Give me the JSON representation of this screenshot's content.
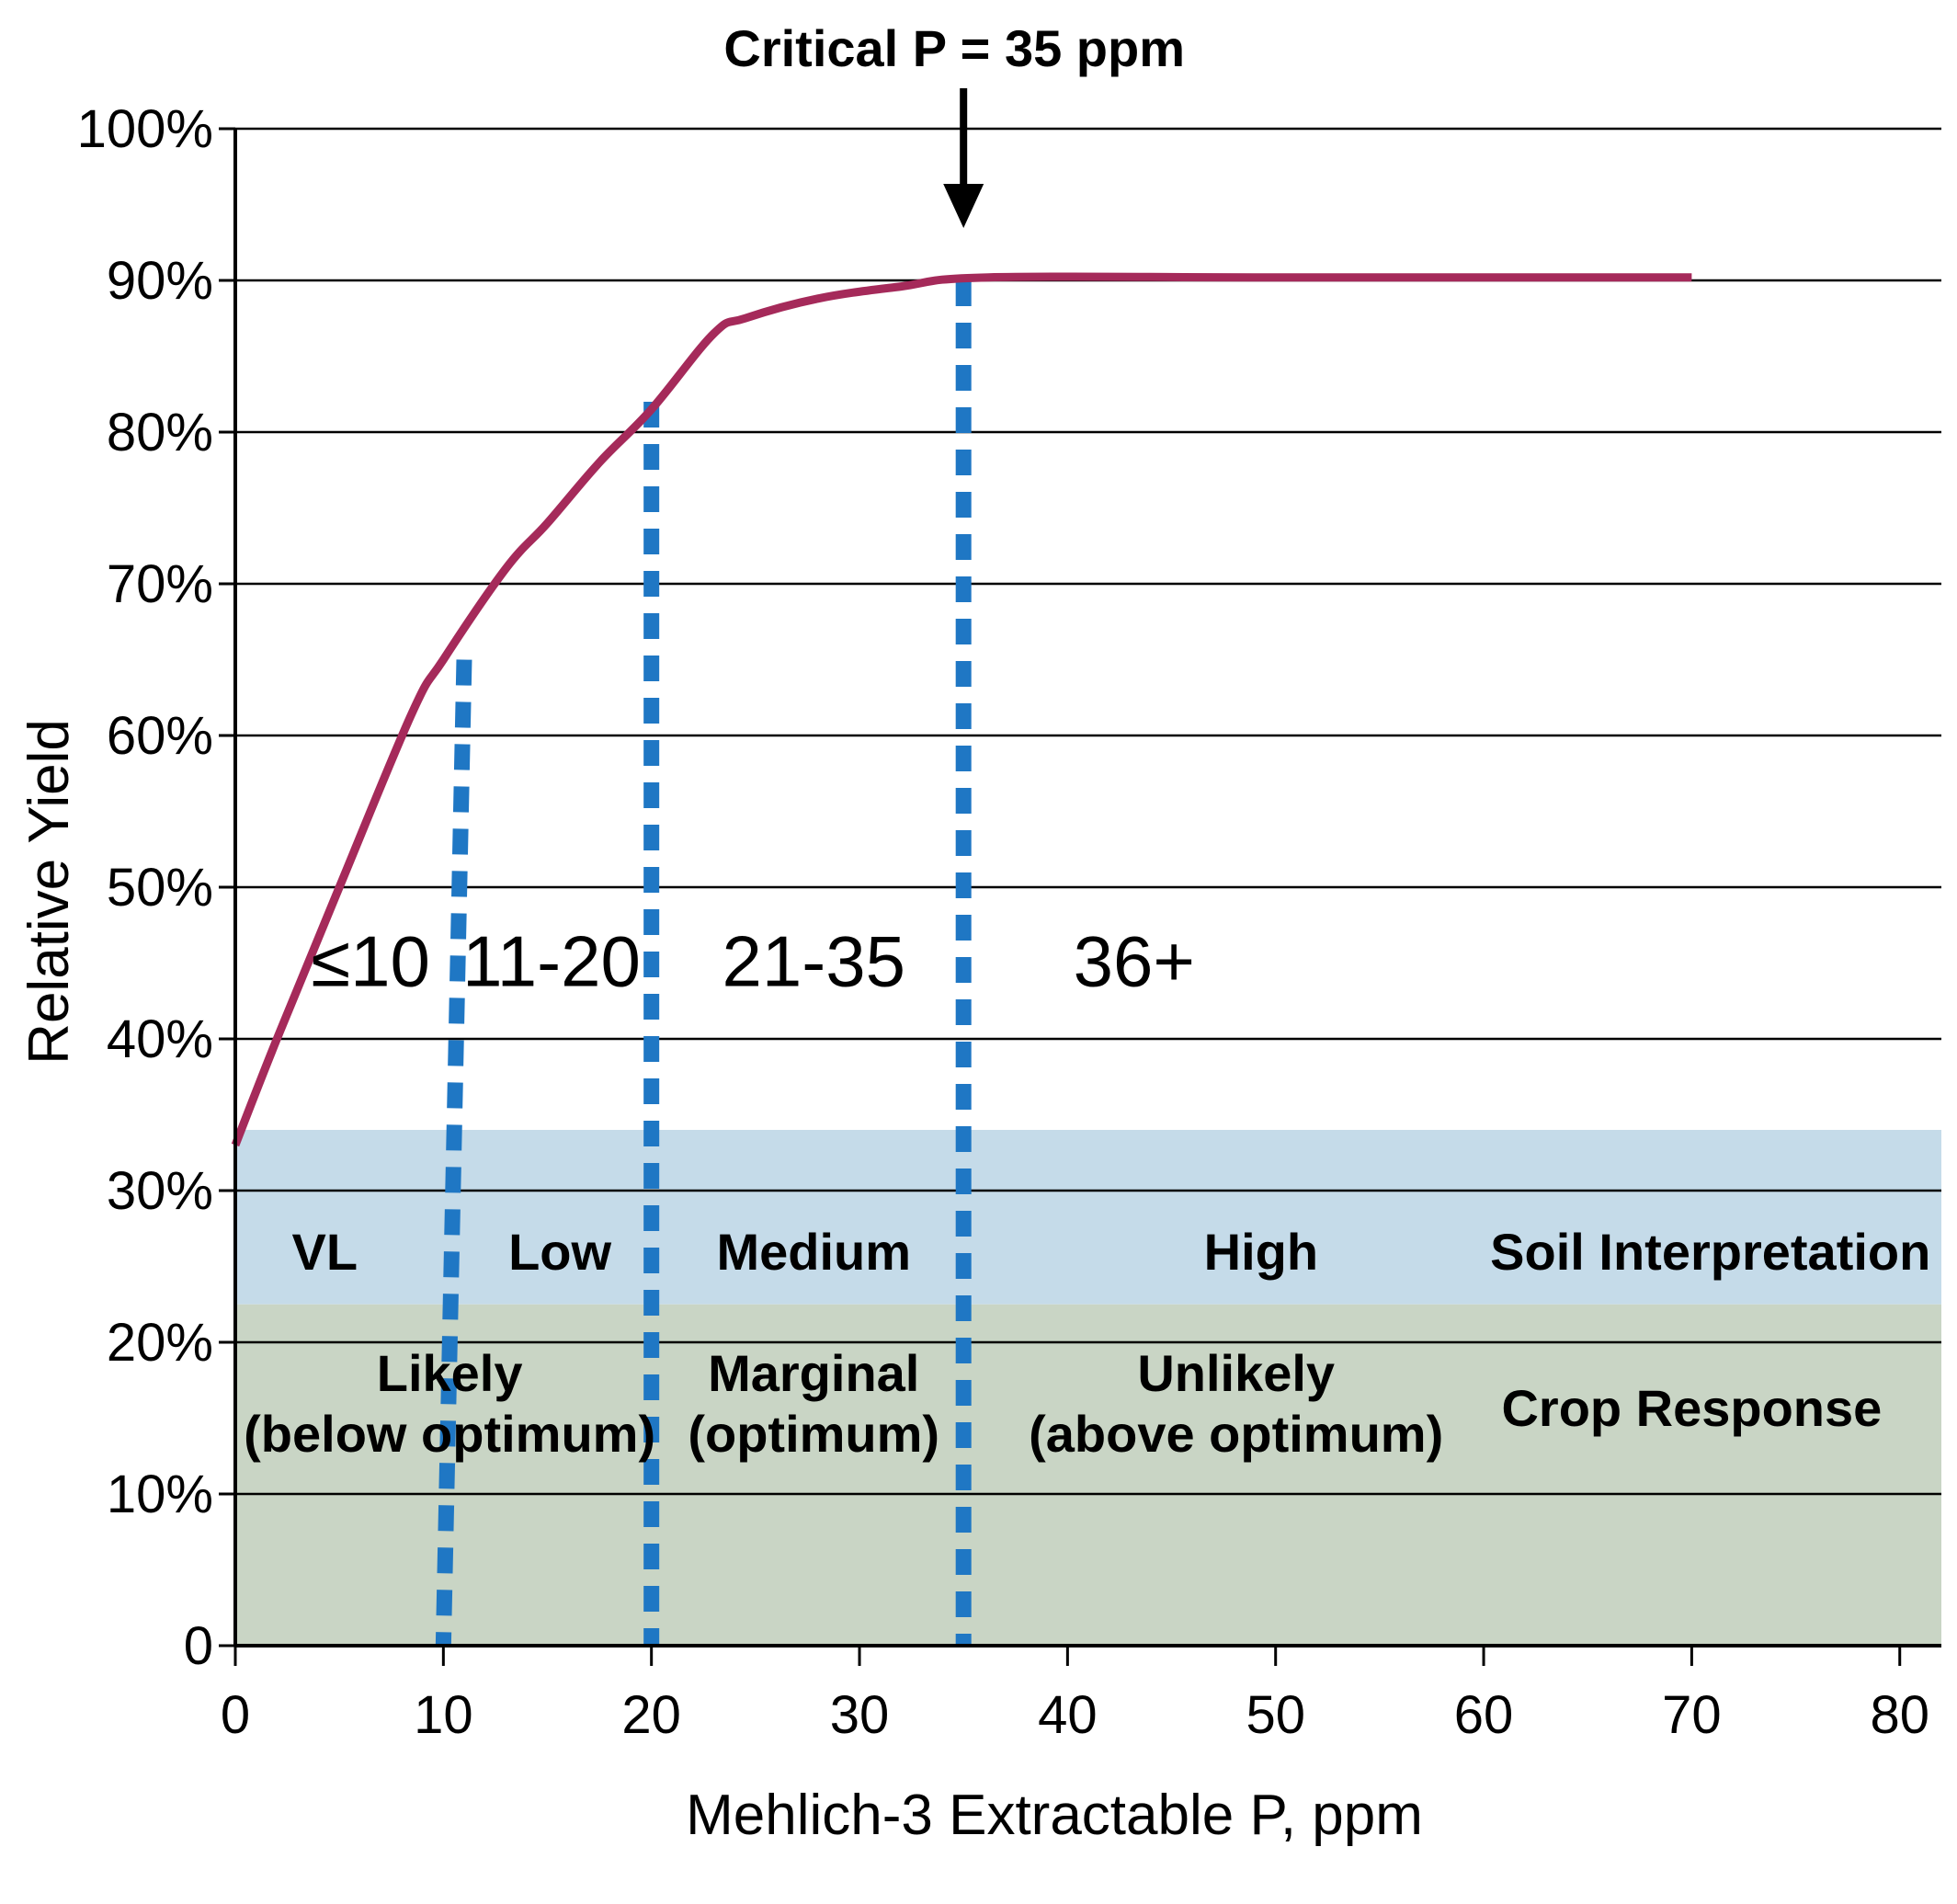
{
  "chart_data": {
    "type": "line",
    "title": "",
    "xlabel": "Mehlich-3 Extractable P, ppm",
    "ylabel": "Relative Yield",
    "xlim": [
      0,
      82
    ],
    "ylim": [
      0,
      100
    ],
    "x_ticks": [
      0,
      10,
      20,
      30,
      40,
      50,
      60,
      70,
      80
    ],
    "x_tick_labels": [
      "0",
      "10",
      "20",
      "30",
      "40",
      "50",
      "60",
      "70",
      "80"
    ],
    "y_ticks": [
      0,
      10,
      20,
      30,
      40,
      50,
      60,
      70,
      80,
      90,
      100
    ],
    "y_tick_labels": [
      "0",
      "10%",
      "20%",
      "30%",
      "40%",
      "50%",
      "60%",
      "70%",
      "80%",
      "90%",
      "100%"
    ],
    "grid": "horizontal",
    "series": [
      {
        "color": "#a52a5a",
        "x": [
          0,
          2,
          5,
          8.5,
          10,
          13,
          15,
          17.5,
          20,
          23,
          24.5,
          28,
          32,
          36.2,
          50,
          70
        ],
        "y": [
          33,
          40,
          50,
          61.5,
          65,
          71,
          74,
          78,
          81.5,
          86.5,
          87.5,
          88.8,
          89.6,
          90.2,
          90.2,
          90.2
        ]
      }
    ],
    "thresholds": [
      {
        "x_top": 11,
        "x_bottom": 10,
        "y_top": 65,
        "color": "#1f77c4"
      },
      {
        "x_top": 20,
        "x_bottom": 20,
        "y_top": 82,
        "color": "#1f77c4"
      },
      {
        "x_top": 35,
        "x_bottom": 35,
        "y_top": 90,
        "color": "#1f77c4"
      }
    ],
    "bands": [
      {
        "name": "soil-interpretation",
        "y_from": 22.5,
        "y_to": 34,
        "color": "#c5dbe9"
      },
      {
        "name": "crop-response",
        "y_from": 0,
        "y_to": 22.5,
        "color": "#c9d5c5"
      }
    ],
    "range_labels": [
      {
        "text": "≤10",
        "x": 6.5,
        "y": 43.5
      },
      {
        "text": "11-20",
        "x": 15.2,
        "y": 43.5
      },
      {
        "text": "21-35",
        "x": 27.8,
        "y": 43.5
      },
      {
        "text": "36+",
        "x": 43.2,
        "y": 43.5
      }
    ],
    "soil_interpretation": {
      "row_y": 26,
      "labels": [
        {
          "text": "VL",
          "x": 4.3
        },
        {
          "text": "Low",
          "x": 15.6
        },
        {
          "text": "Medium",
          "x": 27.8
        },
        {
          "text": "High",
          "x": 49.3
        },
        {
          "text": "Soil Interpretation",
          "x": 70.9
        }
      ]
    },
    "crop_response": {
      "labels": [
        {
          "lines": [
            "Likely",
            "(below optimum)"
          ],
          "x": 10.3
        },
        {
          "lines": [
            "Marginal",
            "(optimum)"
          ],
          "x": 27.8
        },
        {
          "lines": [
            "Unlikely",
            "(above optimum)"
          ],
          "x": 48.1
        },
        {
          "lines": [
            "Crop Response"
          ],
          "x": 70
        }
      ]
    },
    "annotation": {
      "text": "Critical P = 35 ppm",
      "x": 35,
      "arrow": true
    }
  }
}
